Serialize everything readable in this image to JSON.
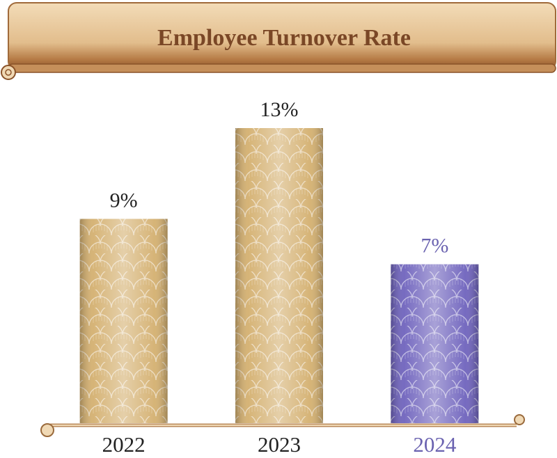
{
  "chart_data": {
    "type": "bar",
    "title": "Employee Turnover Rate",
    "categories": [
      "2022",
      "2023",
      "2024"
    ],
    "values": [
      9,
      13,
      7
    ],
    "value_labels": [
      "9%",
      "13%",
      "7%"
    ],
    "colors": [
      "#d4b070",
      "#d4b070",
      "#6f63bd"
    ],
    "label_colors": [
      "#222222",
      "#222222",
      "#6a62b0"
    ]
  }
}
